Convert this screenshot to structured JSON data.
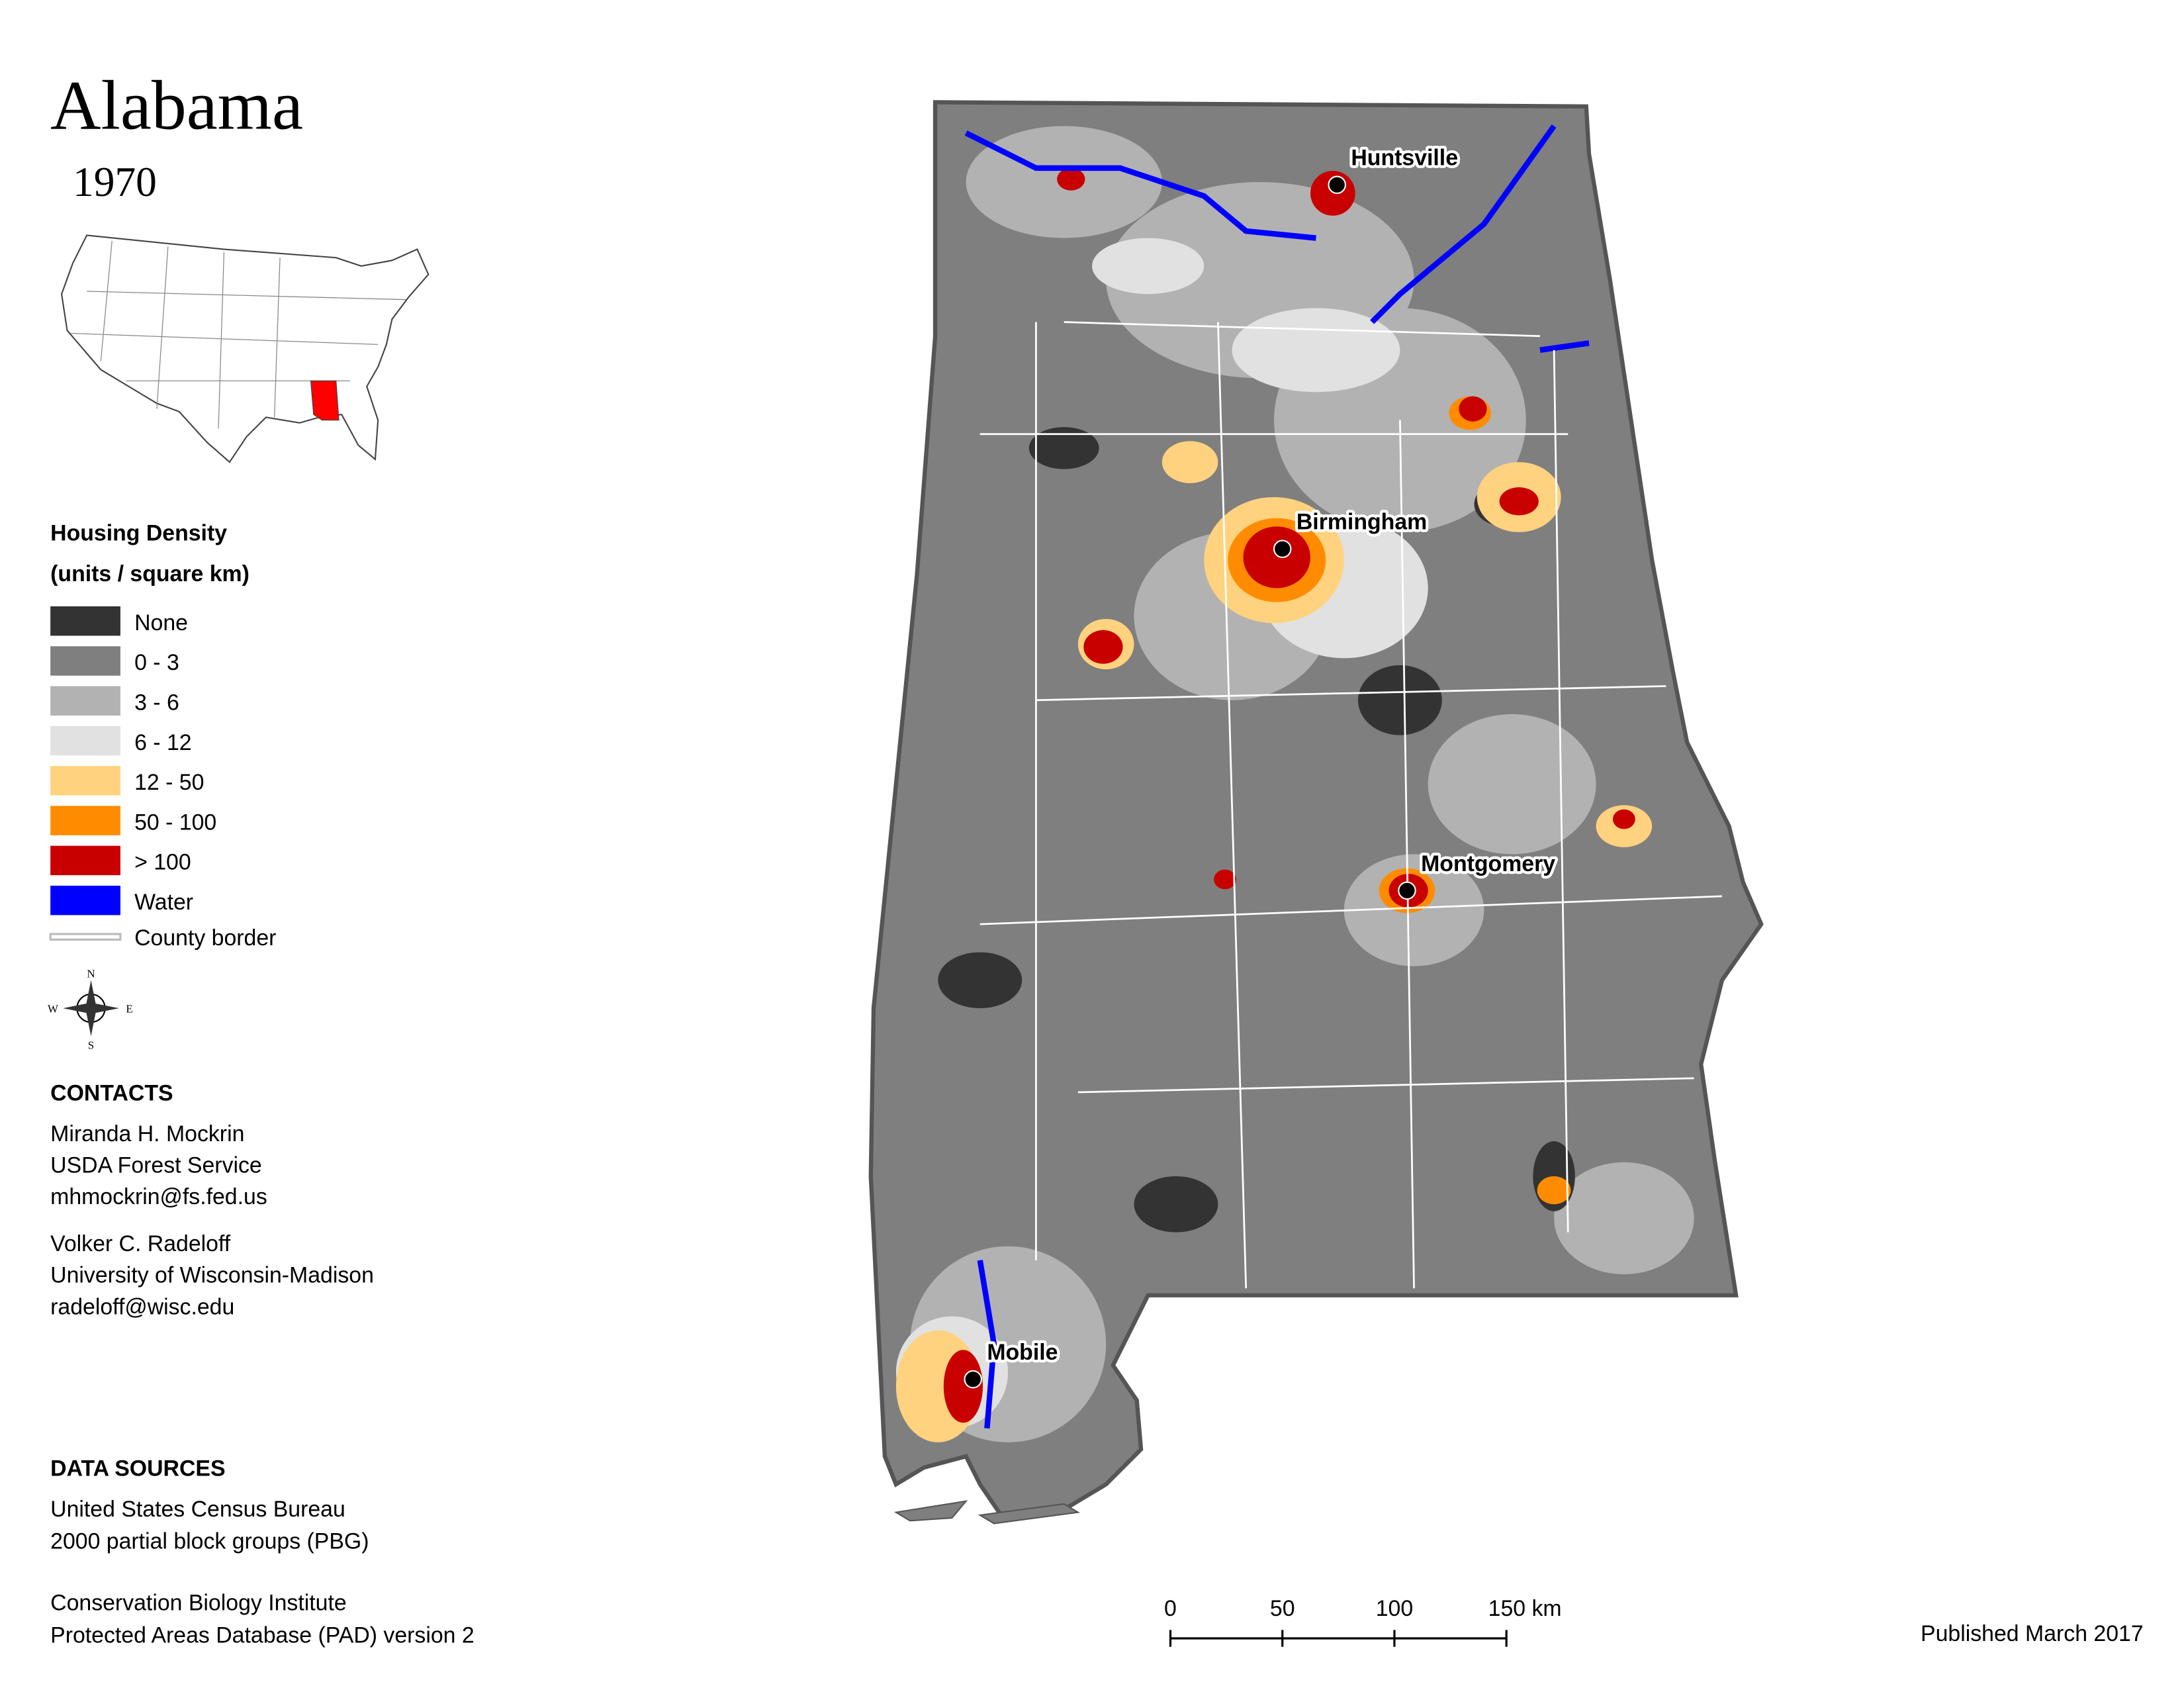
{
  "header": {
    "title": "Alabama",
    "year": "1970"
  },
  "legend": {
    "title": "Housing Density",
    "subtitle": "(units / square km)",
    "items": [
      {
        "label": "None",
        "color": "#333333"
      },
      {
        "label": "0 - 3",
        "color": "#7f7f7f"
      },
      {
        "label": "3 - 6",
        "color": "#b2b2b2"
      },
      {
        "label": "6 - 12",
        "color": "#e1e1e1"
      },
      {
        "label": "12 - 50",
        "color": "#ffd27f"
      },
      {
        "label": "50 - 100",
        "color": "#ff8c00"
      },
      {
        "label": "> 100",
        "color": "#c80000"
      },
      {
        "label": "Water",
        "color": "#0000ff"
      }
    ],
    "border_label": "County border"
  },
  "compass": [
    "N",
    "E",
    "S",
    "W"
  ],
  "contacts": {
    "title": "CONTACTS",
    "people": [
      [
        "Miranda H. Mockrin",
        "USDA Forest Service",
        "mhmockrin@fs.fed.us"
      ],
      [
        "Volker C. Radeloff",
        "University of Wisconsin-Madison",
        "radeloff@wisc.edu"
      ]
    ]
  },
  "sources": {
    "title": "DATA SOURCES",
    "entries": [
      [
        "United States Census Bureau",
        "2000 partial block groups (PBG)"
      ],
      [
        "Conservation Biology Institute",
        "Protected Areas Database (PAD) version 2"
      ]
    ]
  },
  "cities": [
    "Huntsville",
    "Birmingham",
    "Montgomery",
    "Mobile"
  ],
  "scale_bar": [
    "0",
    "50",
    "100",
    "150 km"
  ],
  "footer": "Published March 2017"
}
